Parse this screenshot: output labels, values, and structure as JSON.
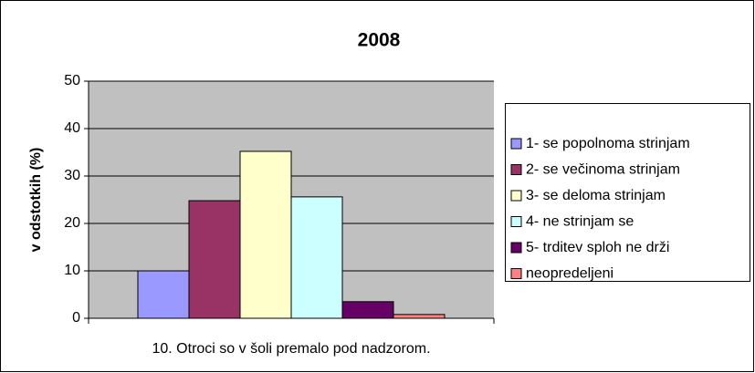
{
  "chart_data": {
    "type": "bar",
    "title": "2008",
    "y_label": "v odstotkih (%)",
    "categories": [
      "10. Otroci so v šoli premalo pod nadzorom."
    ],
    "series": [
      {
        "name": "1- se popolnoma strinjam",
        "color": "#9999ff",
        "values": [
          10
        ]
      },
      {
        "name": "2- se večinoma strinjam",
        "color": "#993366",
        "values": [
          24.8
        ]
      },
      {
        "name": "3- se deloma strinjam",
        "color": "#ffffcc",
        "values": [
          35.2
        ]
      },
      {
        "name": "4- ne strinjam se",
        "color": "#ccffff",
        "values": [
          25.6
        ]
      },
      {
        "name": "5- trditev sploh ne drži",
        "color": "#660066",
        "values": [
          3.5
        ]
      },
      {
        "name": "neopredeljeni",
        "color": "#ff8080",
        "values": [
          0.8
        ]
      }
    ],
    "ylim": [
      0,
      50
    ],
    "yticks": [
      0,
      10,
      20,
      30,
      40,
      50
    ],
    "grid": true,
    "legend": "right",
    "plot_background": "#c0c0c0"
  }
}
